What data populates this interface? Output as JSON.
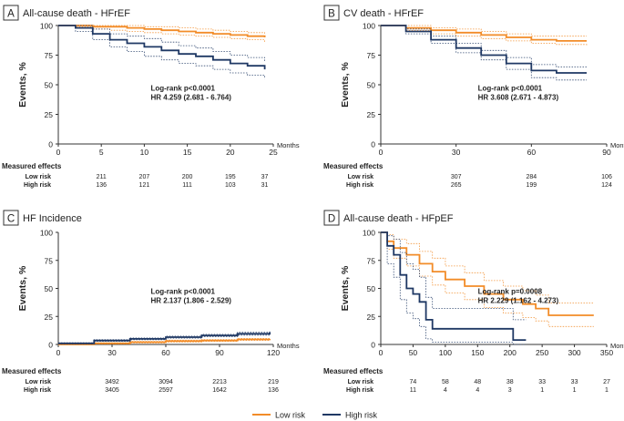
{
  "legend": {
    "items": [
      {
        "label": "Low risk",
        "color": "#f28c28"
      },
      {
        "label": "High risk",
        "color": "#1f3864"
      }
    ]
  },
  "chart_data": [
    {
      "type": "line",
      "panel": "A",
      "title": "All-cause death - HFrEF",
      "ylabel": "Events, %",
      "xlabel": "Months",
      "xlim": [
        0,
        25
      ],
      "ylim": [
        0,
        100
      ],
      "xticks": [
        0,
        5,
        10,
        15,
        20,
        25
      ],
      "yticks": [
        0,
        25,
        50,
        75,
        100
      ],
      "annotation": [
        "Log-rank p<0.0001",
        "HR 4.259 (2.681 - 6.764)"
      ],
      "risk_table": {
        "header": "Measured effects",
        "x": [
          5,
          10,
          15,
          20,
          24
        ],
        "rows": [
          {
            "label": "Low risk",
            "values": [
              "211",
              "207",
              "200",
              "195",
              "37"
            ]
          },
          {
            "label": "High risk",
            "values": [
              "136",
              "121",
              "111",
              "103",
              "31"
            ]
          }
        ]
      },
      "series": [
        {
          "name": "Low risk",
          "color": "#f28c28",
          "x": [
            0,
            2,
            4,
            6,
            8,
            10,
            12,
            14,
            16,
            18,
            20,
            22,
            24
          ],
          "y": [
            100,
            100,
            99,
            99,
            98,
            97,
            96,
            95,
            94,
            93,
            92,
            91,
            90
          ],
          "lower": [
            100,
            99,
            97,
            96,
            95,
            94,
            93,
            92,
            91,
            90,
            89,
            88,
            86
          ],
          "upper": [
            100,
            100,
            100,
            100,
            100,
            99,
            99,
            98,
            97,
            96,
            95,
            94,
            93
          ]
        },
        {
          "name": "High risk",
          "color": "#1f3864",
          "x": [
            0,
            2,
            4,
            6,
            8,
            10,
            12,
            14,
            16,
            18,
            20,
            22,
            24
          ],
          "y": [
            100,
            98,
            93,
            88,
            85,
            82,
            79,
            76,
            74,
            71,
            68,
            66,
            63
          ],
          "lower": [
            100,
            95,
            88,
            82,
            78,
            74,
            71,
            68,
            66,
            63,
            60,
            58,
            55
          ],
          "upper": [
            100,
            100,
            97,
            93,
            91,
            89,
            86,
            83,
            81,
            78,
            75,
            73,
            70
          ]
        }
      ]
    },
    {
      "type": "line",
      "panel": "B",
      "title": "CV death - HFrEF",
      "ylabel": "Events, %",
      "xlabel": "Months",
      "xlim": [
        0,
        90
      ],
      "ylim": [
        0,
        100
      ],
      "xticks": [
        0,
        30,
        60,
        90
      ],
      "yticks": [
        0,
        25,
        50,
        75,
        100
      ],
      "annotation": [
        "Log-rank p<0.0001",
        "HR 3.608 (2.671 - 4.873)"
      ],
      "risk_table": {
        "header": "Measured effects",
        "x": [
          30,
          60,
          90
        ],
        "rows": [
          {
            "label": "Low risk",
            "values": [
              "307",
              "284",
              "106"
            ]
          },
          {
            "label": "High risk",
            "values": [
              "265",
              "199",
              "124"
            ]
          }
        ]
      },
      "series": [
        {
          "name": "Low risk",
          "color": "#f28c28",
          "x": [
            0,
            10,
            20,
            30,
            40,
            50,
            60,
            70,
            82
          ],
          "y": [
            100,
            98,
            96,
            94,
            92,
            90,
            88,
            87,
            87
          ],
          "lower": [
            100,
            96,
            93,
            91,
            89,
            87,
            85,
            84,
            83
          ],
          "upper": [
            100,
            100,
            98,
            97,
            95,
            93,
            91,
            91,
            91
          ]
        },
        {
          "name": "High risk",
          "color": "#1f3864",
          "x": [
            0,
            10,
            20,
            30,
            40,
            50,
            60,
            70,
            82
          ],
          "y": [
            100,
            95,
            88,
            81,
            75,
            68,
            62,
            60,
            60
          ],
          "lower": [
            100,
            93,
            85,
            77,
            71,
            63,
            56,
            54,
            54
          ],
          "upper": [
            100,
            97,
            91,
            85,
            79,
            73,
            67,
            65,
            65
          ]
        }
      ]
    },
    {
      "type": "line",
      "panel": "C",
      "title": "HF Incidence",
      "ylabel": "Events, %",
      "xlabel": "Months",
      "xlim": [
        0,
        120
      ],
      "ylim": [
        0,
        100
      ],
      "xticks": [
        0,
        30,
        60,
        90,
        120
      ],
      "yticks": [
        0,
        25,
        50,
        75,
        100
      ],
      "annotation": [
        "Log-rank p<0.0001",
        "HR 2.137 (1.806 - 2.529)"
      ],
      "risk_table": {
        "header": "Measured effects",
        "x": [
          30,
          60,
          90,
          120
        ],
        "rows": [
          {
            "label": "Low risk",
            "values": [
              "3492",
              "3094",
              "2213",
              "219"
            ]
          },
          {
            "label": "High risk",
            "values": [
              "3405",
              "2597",
              "1642",
              "136"
            ]
          }
        ]
      },
      "series": [
        {
          "name": "Low risk",
          "color": "#f28c28",
          "x": [
            0,
            20,
            40,
            60,
            80,
            100,
            118
          ],
          "y": [
            0,
            1,
            2,
            3,
            3.5,
            4.5,
            5
          ],
          "lower": [
            0,
            0.5,
            1.3,
            2.2,
            2.8,
            3.6,
            4
          ],
          "upper": [
            0,
            1.5,
            2.7,
            3.8,
            4.3,
            5.4,
            6
          ]
        },
        {
          "name": "High risk",
          "color": "#1f3864",
          "x": [
            0,
            20,
            40,
            60,
            80,
            100,
            118
          ],
          "y": [
            1,
            3.5,
            5,
            6.5,
            8,
            9.5,
            11
          ],
          "lower": [
            0.5,
            2.8,
            4.2,
            5.6,
            7,
            8.3,
            9.5
          ],
          "upper": [
            1.5,
            4.2,
            5.8,
            7.4,
            9,
            10.8,
            12.5
          ]
        }
      ]
    },
    {
      "type": "line",
      "panel": "D",
      "title": "All-cause death - HFpEF",
      "ylabel": "Events, %",
      "xlabel": "Months",
      "xlim": [
        0,
        350
      ],
      "ylim": [
        0,
        100
      ],
      "xticks": [
        0,
        50,
        100,
        150,
        200,
        250,
        300,
        350
      ],
      "yticks": [
        0,
        25,
        50,
        75,
        100
      ],
      "annotation": [
        "Log-rank p=0.0008",
        "HR 2.229 (1.162 - 4.273)"
      ],
      "risk_table": {
        "header": "Measured effects",
        "x": [
          50,
          100,
          150,
          200,
          250,
          300,
          350
        ],
        "rows": [
          {
            "label": "Low risk",
            "values": [
              "74",
              "58",
              "48",
              "38",
              "33",
              "33",
              "27"
            ]
          },
          {
            "label": "High risk",
            "values": [
              "11",
              "4",
              "4",
              "3",
              "1",
              "1",
              "1"
            ]
          }
        ]
      },
      "series": [
        {
          "name": "Low risk",
          "color": "#f28c28",
          "x": [
            0,
            10,
            20,
            40,
            60,
            80,
            100,
            130,
            160,
            190,
            220,
            240,
            260,
            330
          ],
          "y": [
            100,
            92,
            86,
            80,
            72,
            65,
            58,
            52,
            45,
            40,
            36,
            32,
            26,
            26
          ],
          "lower": [
            100,
            85,
            77,
            70,
            61,
            53,
            46,
            40,
            33,
            28,
            24,
            21,
            16,
            16
          ],
          "upper": [
            100,
            98,
            94,
            90,
            83,
            77,
            70,
            64,
            57,
            52,
            48,
            44,
            37,
            37
          ]
        },
        {
          "name": "High risk",
          "color": "#1f3864",
          "x": [
            0,
            10,
            20,
            30,
            40,
            50,
            60,
            70,
            80,
            150,
            200,
            205,
            225
          ],
          "y": [
            100,
            88,
            80,
            62,
            50,
            45,
            38,
            22,
            14,
            14,
            14,
            4,
            4
          ],
          "lower": [
            100,
            72,
            60,
            40,
            28,
            23,
            16,
            5,
            2,
            2,
            2,
            0,
            0
          ],
          "upper": [
            100,
            97,
            94,
            82,
            72,
            67,
            60,
            42,
            32,
            32,
            32,
            22,
            22
          ]
        }
      ]
    }
  ]
}
